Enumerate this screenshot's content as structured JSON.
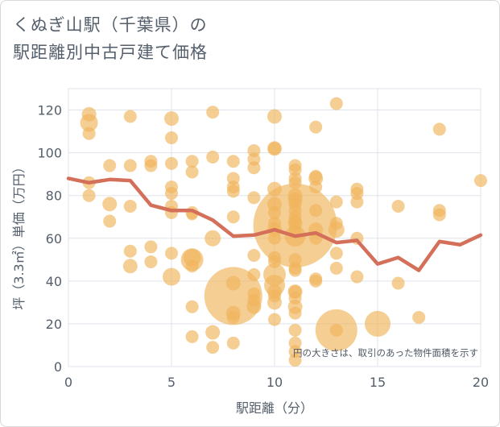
{
  "title_lines": [
    "くぬぎ山駅（千葉県）の",
    "駅距離別中古戸建て価格"
  ],
  "chart_data": {
    "type": "scatter",
    "xlabel": "駅距離（分）",
    "ylabel": "坪（3.3㎡）単価（万円）",
    "xlim": [
      0,
      20
    ],
    "ylim": [
      0,
      130
    ],
    "xticks": [
      0,
      5,
      10,
      15,
      20
    ],
    "yticks": [
      0,
      20,
      40,
      60,
      80,
      100,
      120
    ],
    "grid": true,
    "annotation": "円の大きさは、取引のあった物件面積を示す",
    "colors": {
      "bubble": "#f0b45a",
      "line": "#d4705a",
      "grid": "#dfe3ea",
      "text": "#555f6b"
    },
    "points": [
      [
        1,
        118,
        9
      ],
      [
        1,
        114,
        11
      ],
      [
        1,
        109,
        8
      ],
      [
        1,
        86,
        8
      ],
      [
        1,
        80,
        8
      ],
      [
        2,
        94,
        8
      ],
      [
        2,
        76,
        9
      ],
      [
        2,
        68,
        8
      ],
      [
        3,
        117,
        8
      ],
      [
        3,
        94,
        8
      ],
      [
        3,
        75,
        8
      ],
      [
        3,
        54,
        8
      ],
      [
        3,
        47,
        9
      ],
      [
        4,
        96,
        8
      ],
      [
        4,
        94,
        8
      ],
      [
        4,
        56,
        8
      ],
      [
        4,
        49,
        8
      ],
      [
        5,
        116,
        9
      ],
      [
        5,
        107,
        8
      ],
      [
        5,
        95,
        8
      ],
      [
        5,
        84,
        8
      ],
      [
        5,
        81,
        8
      ],
      [
        5,
        75,
        8
      ],
      [
        5,
        72,
        8
      ],
      [
        5,
        53,
        8
      ],
      [
        5,
        42,
        11
      ],
      [
        6,
        96,
        8
      ],
      [
        6,
        91,
        8
      ],
      [
        6,
        72,
        8
      ],
      [
        6,
        71,
        7
      ],
      [
        6,
        51,
        11
      ],
      [
        6,
        50,
        14
      ],
      [
        6,
        47,
        8
      ],
      [
        6,
        28,
        8
      ],
      [
        6,
        14,
        8
      ],
      [
        7,
        119,
        8
      ],
      [
        7,
        98,
        8
      ],
      [
        7,
        60,
        10
      ],
      [
        7,
        16,
        9
      ],
      [
        7,
        9,
        8
      ],
      [
        8,
        96,
        8
      ],
      [
        8,
        88,
        8
      ],
      [
        8,
        84,
        8
      ],
      [
        8,
        82,
        8
      ],
      [
        8,
        70,
        8
      ],
      [
        8,
        39,
        9
      ],
      [
        8,
        33,
        36
      ],
      [
        8,
        25,
        9
      ],
      [
        8,
        23,
        8
      ],
      [
        8,
        11,
        8
      ],
      [
        9,
        101,
        8
      ],
      [
        9,
        97,
        8
      ],
      [
        9,
        93,
        8
      ],
      [
        9,
        79,
        8
      ],
      [
        9,
        52,
        8
      ],
      [
        9,
        43,
        8
      ],
      [
        9,
        34,
        8
      ],
      [
        9,
        31,
        8
      ],
      [
        9,
        28,
        9
      ],
      [
        10,
        117,
        9
      ],
      [
        10,
        102,
        9
      ],
      [
        10,
        102,
        8
      ],
      [
        10,
        83,
        9
      ],
      [
        10,
        76,
        9
      ],
      [
        10,
        72,
        8
      ],
      [
        10,
        67,
        8
      ],
      [
        10,
        64,
        9
      ],
      [
        10,
        60,
        8
      ],
      [
        10,
        51,
        8
      ],
      [
        10,
        49,
        8
      ],
      [
        10,
        43,
        14
      ],
      [
        10,
        38,
        13
      ],
      [
        10,
        35,
        9
      ],
      [
        10,
        33,
        8
      ],
      [
        10,
        30,
        9
      ],
      [
        10,
        22,
        8
      ],
      [
        11,
        94,
        8
      ],
      [
        11,
        92,
        8
      ],
      [
        11,
        88,
        8
      ],
      [
        11,
        86,
        8
      ],
      [
        11,
        80,
        9
      ],
      [
        11,
        78,
        9
      ],
      [
        11,
        76,
        8
      ],
      [
        11,
        73,
        8
      ],
      [
        11,
        70,
        8
      ],
      [
        11,
        68,
        8
      ],
      [
        11,
        67,
        9
      ],
      [
        11,
        66,
        52
      ],
      [
        11,
        64,
        8
      ],
      [
        11,
        61,
        13
      ],
      [
        11,
        50,
        8
      ],
      [
        11,
        46,
        8
      ],
      [
        11,
        45,
        8
      ],
      [
        11,
        35,
        8
      ],
      [
        11,
        35,
        9
      ],
      [
        11,
        32,
        8
      ],
      [
        11,
        28,
        9
      ],
      [
        11,
        25,
        8
      ],
      [
        11,
        17,
        8
      ],
      [
        11,
        11,
        8
      ],
      [
        11,
        7,
        8
      ],
      [
        11,
        3,
        8
      ],
      [
        12,
        112,
        8
      ],
      [
        12,
        89,
        8
      ],
      [
        12,
        88,
        9
      ],
      [
        12,
        84,
        8
      ],
      [
        12,
        73,
        8
      ],
      [
        12,
        64,
        9
      ],
      [
        12,
        60,
        8
      ],
      [
        12,
        41,
        8
      ],
      [
        12,
        40,
        8
      ],
      [
        13,
        123,
        8
      ],
      [
        13,
        77,
        8
      ],
      [
        13,
        67,
        8
      ],
      [
        13,
        64,
        10
      ],
      [
        13,
        53,
        8
      ],
      [
        13,
        46,
        8
      ],
      [
        13,
        17,
        26
      ],
      [
        13,
        17,
        8
      ],
      [
        14,
        83,
        8
      ],
      [
        14,
        81,
        8
      ],
      [
        14,
        77,
        8
      ],
      [
        14,
        60,
        8
      ],
      [
        14,
        42,
        8
      ],
      [
        15,
        20,
        16
      ],
      [
        16,
        75,
        8
      ],
      [
        16,
        39,
        8
      ],
      [
        17,
        23,
        8
      ],
      [
        18,
        111,
        8
      ],
      [
        18,
        73,
        8
      ],
      [
        18,
        71,
        8
      ],
      [
        20,
        87,
        8
      ]
    ],
    "line": {
      "x": [
        0,
        1,
        2,
        3,
        4,
        5,
        6,
        7,
        8,
        9,
        10,
        11,
        12,
        13,
        14,
        15,
        16,
        17,
        18,
        19,
        20
      ],
      "y": [
        88,
        86,
        87.5,
        87,
        75.5,
        73,
        73,
        68.5,
        61,
        61.5,
        64,
        61,
        62.5,
        58,
        59,
        48,
        51,
        45,
        58.5,
        57,
        61.5
      ]
    }
  }
}
